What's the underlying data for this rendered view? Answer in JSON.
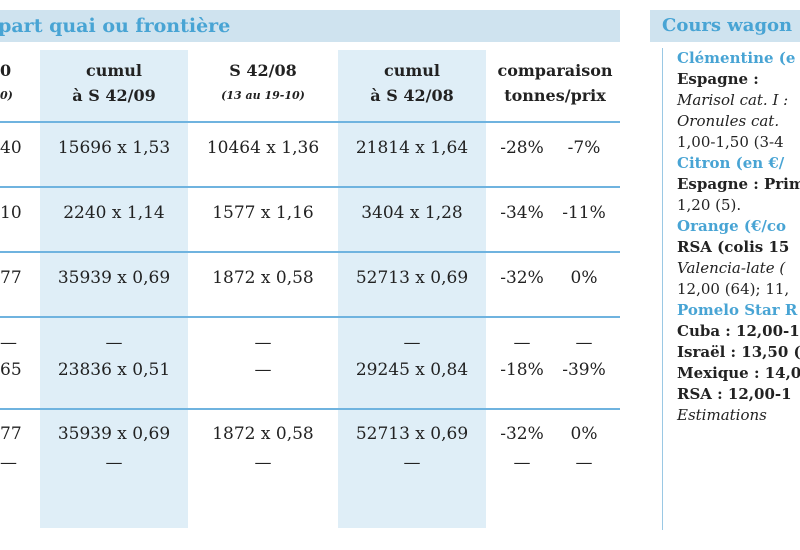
{
  "left_panel": {
    "title": "épart quai ou frontière",
    "columns": [
      {
        "label": "0",
        "sub": "0)"
      },
      {
        "label": "cumul",
        "label2": "à S 42/09"
      },
      {
        "label": "S 42/08",
        "sub": "(13 au 19-10)"
      },
      {
        "label": "cumul",
        "label2": "à S 42/08"
      },
      {
        "label": "comparaison",
        "label2": "tonnes/prix"
      }
    ],
    "rows": [
      {
        "c0": "40",
        "c1": "15696 x 1,53",
        "c2": "10464 x 1,36",
        "c3": "21814 x 1,64",
        "t": "-28%",
        "p": "-7%"
      },
      {
        "c0": "10",
        "c1": "2240 x 1,14",
        "c2": "1577 x 1,16",
        "c3": "3404 x 1,28",
        "t": "-34%",
        "p": "-11%"
      },
      {
        "c0": "77",
        "c1": "35939 x 0,69",
        "c2": "1872 x 0,58",
        "c3": "52713 x 0,69",
        "t": "-32%",
        "p": "0%"
      },
      {
        "c0": "—",
        "c1": "—",
        "c2": "—",
        "c3": "—",
        "t": "—",
        "p": "—"
      },
      {
        "c0": "65",
        "c1": "23836 x 0,51",
        "c2": "—",
        "c3": "29245 x 0,84",
        "t": "-18%",
        "p": "-39%"
      },
      {
        "c0": "77",
        "c1": "35939 x 0,69",
        "c2": "1872 x 0,58",
        "c3": "52713 x  0,69",
        "t": "-32%",
        "p": "0%"
      },
      {
        "c0": "—",
        "c1": "—",
        "c2": "—",
        "c3": "—",
        "t": "—",
        "p": "—"
      }
    ]
  },
  "right_panel": {
    "title": "Cours wagon",
    "lines": [
      {
        "text": "Clémentine (e",
        "style": "blue bold"
      },
      {
        "text": "Espagne :",
        "style": "bold"
      },
      {
        "text": "Marisol cat. I :",
        "style": "it"
      },
      {
        "text": "Oronules  cat.",
        "style": "it"
      },
      {
        "text": "1,00-1,50 (3-4",
        "style": ""
      },
      {
        "text": "Citron (en €/",
        "style": "blue bold"
      },
      {
        "text": "Espagne : Prim",
        "style": "bold"
      },
      {
        "text": "1,20 (5).",
        "style": ""
      },
      {
        "text": "Orange (€/co",
        "style": "blue bold"
      },
      {
        "text": "RSA (colis 15",
        "style": "bold"
      },
      {
        "text": "Valencia-late  (",
        "style": "it"
      },
      {
        "text": "12,00 (64); 11,",
        "style": ""
      },
      {
        "text": "Pomelo Star R",
        "style": "blue bold"
      },
      {
        "text": "Cuba : 12,00-1",
        "style": "bold"
      },
      {
        "text": "Israël : 13,50 (",
        "style": "bold"
      },
      {
        "text": "Mexique : 14,0",
        "style": "bold"
      },
      {
        "text": "RSA : 12,00-1",
        "style": "bold"
      },
      {
        "text": "Estimations",
        "style": "it"
      }
    ]
  }
}
